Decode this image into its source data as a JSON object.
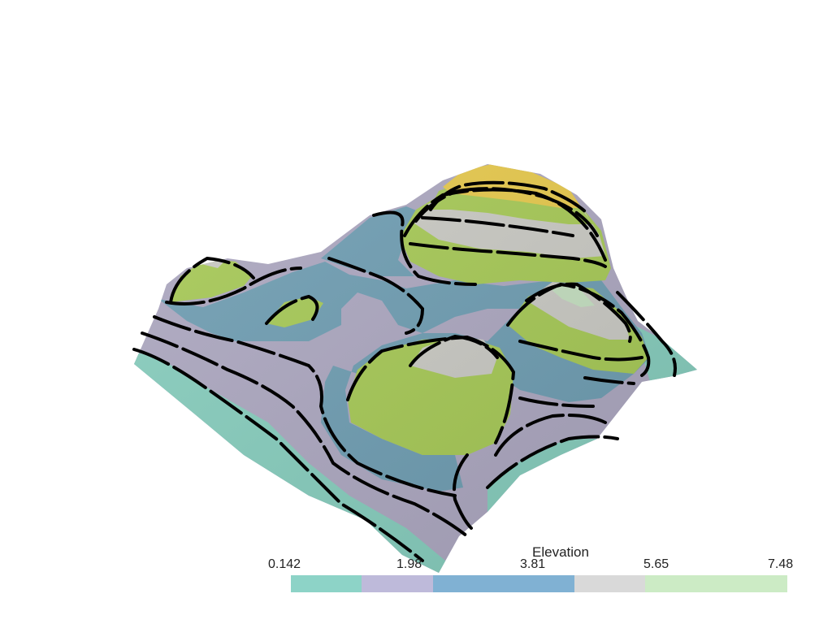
{
  "scalar_bar": {
    "title": "Elevation",
    "ticks": [
      "0.142",
      "1.98",
      "3.81",
      "5.65",
      "7.48"
    ],
    "colors": [
      "#8dd3c7",
      "#bebada",
      "#80b1d3",
      "#d9d9d9",
      "#ccebc5"
    ],
    "segment_weights": [
      1,
      1,
      2,
      1,
      2
    ]
  },
  "surface": {
    "band_colors": [
      "#86cdbd",
      "#aca7c0",
      "#6e9db2",
      "#c9c9c3",
      "#a6c955",
      "#e6c84a"
    ],
    "contour_color": "#000000"
  }
}
